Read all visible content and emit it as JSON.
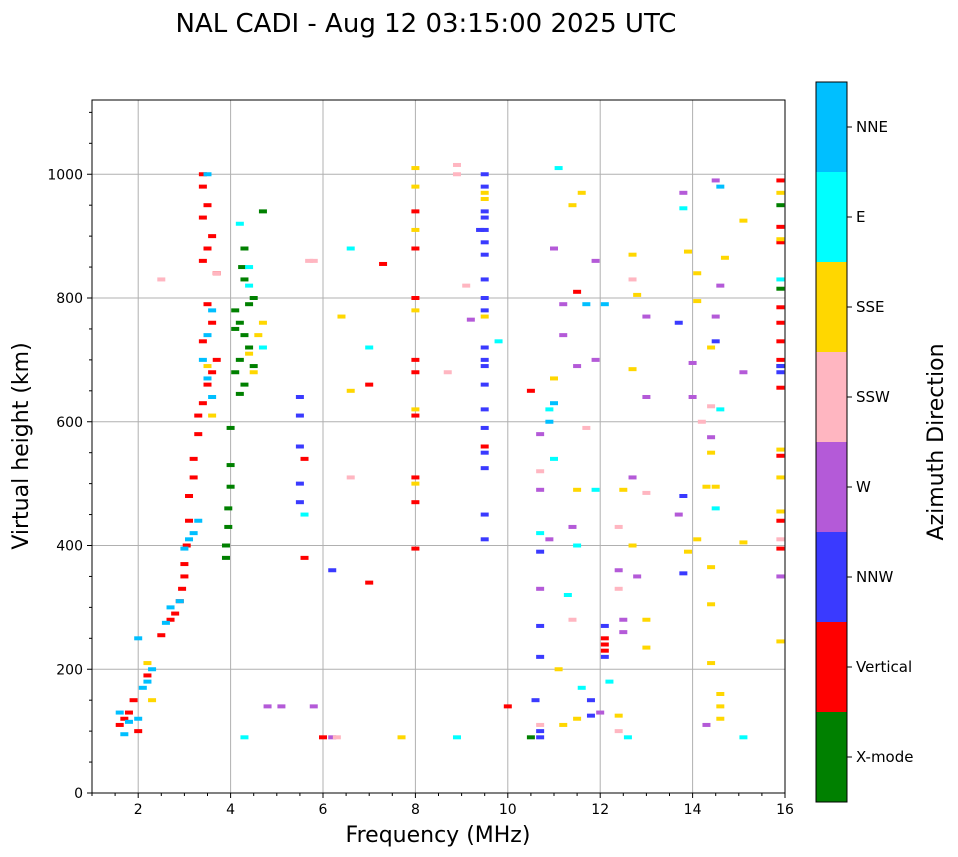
{
  "chart_data": {
    "type": "scatter",
    "title": "NAL CADI - Aug 12 03:15:00 2025 UTC",
    "xlabel": "Frequency (MHz)",
    "ylabel": "Virtual height (km)",
    "xlim": [
      1,
      16
    ],
    "ylim": [
      0,
      1120
    ],
    "xticks": [
      2,
      4,
      6,
      8,
      10,
      12,
      14,
      16
    ],
    "yticks": [
      0,
      200,
      400,
      600,
      800,
      1000
    ],
    "grid": true,
    "colorbar": {
      "label": "Azimuth Direction",
      "categories": [
        {
          "name": "X-mode",
          "color": "#008000"
        },
        {
          "name": "Vertical",
          "color": "#ff0000"
        },
        {
          "name": "NNW",
          "color": "#3a3aff"
        },
        {
          "name": "W",
          "color": "#b45ad8"
        },
        {
          "name": "SSW",
          "color": "#ffb6c1"
        },
        {
          "name": "SSE",
          "color": "#ffd700"
        },
        {
          "name": "E",
          "color": "#00ffff"
        },
        {
          "name": "NNE",
          "color": "#00bfff"
        }
      ]
    },
    "series": [
      {
        "name": "X-mode",
        "points": [
          [
            4.0,
            590
          ],
          [
            4.0,
            530
          ],
          [
            4.0,
            495
          ],
          [
            3.95,
            460
          ],
          [
            3.95,
            430
          ],
          [
            3.9,
            400
          ],
          [
            3.9,
            380
          ],
          [
            4.1,
            780
          ],
          [
            4.2,
            760
          ],
          [
            4.3,
            740
          ],
          [
            4.4,
            720
          ],
          [
            4.2,
            700
          ],
          [
            4.1,
            680
          ],
          [
            4.3,
            660
          ],
          [
            4.2,
            645
          ],
          [
            4.5,
            690
          ],
          [
            4.5,
            800
          ],
          [
            4.3,
            830
          ],
          [
            4.4,
            790
          ],
          [
            4.1,
            750
          ],
          [
            4.3,
            880
          ],
          [
            4.25,
            850
          ],
          [
            15.9,
            950
          ],
          [
            15.9,
            815
          ],
          [
            15.9,
            690
          ],
          [
            10.5,
            90
          ],
          [
            4.7,
            940
          ]
        ]
      },
      {
        "name": "Vertical",
        "points": [
          [
            3.4,
            1000
          ],
          [
            3.4,
            980
          ],
          [
            3.5,
            950
          ],
          [
            3.4,
            930
          ],
          [
            3.6,
            900
          ],
          [
            3.5,
            880
          ],
          [
            3.4,
            860
          ],
          [
            3.7,
            840
          ],
          [
            3.5,
            790
          ],
          [
            3.6,
            760
          ],
          [
            3.4,
            730
          ],
          [
            3.7,
            700
          ],
          [
            3.6,
            680
          ],
          [
            3.5,
            660
          ],
          [
            3.4,
            630
          ],
          [
            3.3,
            610
          ],
          [
            3.3,
            580
          ],
          [
            3.2,
            540
          ],
          [
            3.2,
            510
          ],
          [
            3.1,
            480
          ],
          [
            3.1,
            440
          ],
          [
            3.05,
            400
          ],
          [
            3.0,
            370
          ],
          [
            3.0,
            350
          ],
          [
            2.95,
            330
          ],
          [
            2.9,
            310
          ],
          [
            2.8,
            290
          ],
          [
            2.7,
            280
          ],
          [
            2.5,
            255
          ],
          [
            2.2,
            190
          ],
          [
            1.9,
            150
          ],
          [
            1.8,
            130
          ],
          [
            1.6,
            110
          ],
          [
            1.7,
            120
          ],
          [
            2.0,
            100
          ],
          [
            6.0,
            90
          ],
          [
            7.0,
            660
          ],
          [
            7.3,
            855
          ],
          [
            7.0,
            340
          ],
          [
            8.0,
            940
          ],
          [
            8.0,
            880
          ],
          [
            8.0,
            800
          ],
          [
            8.0,
            700
          ],
          [
            8.0,
            680
          ],
          [
            8.0,
            610
          ],
          [
            8.0,
            510
          ],
          [
            8.0,
            470
          ],
          [
            8.0,
            395
          ],
          [
            9.5,
            560
          ],
          [
            10.5,
            650
          ],
          [
            11.5,
            810
          ],
          [
            12.1,
            250
          ],
          [
            12.1,
            230
          ],
          [
            12.1,
            240
          ],
          [
            15.9,
            990
          ],
          [
            15.9,
            915
          ],
          [
            15.9,
            890
          ],
          [
            15.9,
            785
          ],
          [
            15.9,
            760
          ],
          [
            15.9,
            730
          ],
          [
            15.9,
            700
          ],
          [
            15.9,
            655
          ],
          [
            15.9,
            545
          ],
          [
            15.9,
            440
          ],
          [
            15.9,
            395
          ],
          [
            10.0,
            140
          ],
          [
            5.6,
            540
          ],
          [
            5.6,
            380
          ]
        ]
      },
      {
        "name": "NNW",
        "points": [
          [
            9.5,
            1000
          ],
          [
            9.5,
            980
          ],
          [
            9.5,
            940
          ],
          [
            9.5,
            930
          ],
          [
            9.5,
            910
          ],
          [
            9.5,
            890
          ],
          [
            9.5,
            870
          ],
          [
            9.5,
            830
          ],
          [
            9.5,
            800
          ],
          [
            9.5,
            780
          ],
          [
            9.5,
            720
          ],
          [
            9.5,
            700
          ],
          [
            9.5,
            690
          ],
          [
            9.5,
            660
          ],
          [
            9.5,
            620
          ],
          [
            9.5,
            590
          ],
          [
            9.5,
            550
          ],
          [
            9.5,
            525
          ],
          [
            9.5,
            450
          ],
          [
            9.5,
            410
          ],
          [
            9.4,
            910
          ],
          [
            10.7,
            390
          ],
          [
            10.7,
            270
          ],
          [
            10.7,
            220
          ],
          [
            10.7,
            90
          ],
          [
            10.7,
            100
          ],
          [
            11.8,
            150
          ],
          [
            11.8,
            125
          ],
          [
            12.1,
            220
          ],
          [
            12.1,
            270
          ],
          [
            13.8,
            480
          ],
          [
            13.8,
            355
          ],
          [
            14.5,
            730
          ],
          [
            13.7,
            760
          ],
          [
            15.9,
            680
          ],
          [
            15.9,
            690
          ],
          [
            6.2,
            360
          ],
          [
            5.5,
            610
          ],
          [
            5.5,
            560
          ],
          [
            5.5,
            500
          ],
          [
            5.5,
            470
          ],
          [
            5.5,
            640
          ],
          [
            10.6,
            150
          ]
        ]
      },
      {
        "name": "W",
        "points": [
          [
            4.8,
            140
          ],
          [
            5.1,
            140
          ],
          [
            5.8,
            140
          ],
          [
            6.2,
            90
          ],
          [
            11.0,
            880
          ],
          [
            11.2,
            790
          ],
          [
            11.2,
            740
          ],
          [
            11.5,
            690
          ],
          [
            11.9,
            700
          ],
          [
            11.9,
            860
          ],
          [
            13.0,
            770
          ],
          [
            13.0,
            640
          ],
          [
            12.7,
            510
          ],
          [
            12.8,
            350
          ],
          [
            12.4,
            360
          ],
          [
            12.5,
            280
          ],
          [
            12.5,
            260
          ],
          [
            13.8,
            970
          ],
          [
            14.5,
            990
          ],
          [
            14.5,
            770
          ],
          [
            14.6,
            820
          ],
          [
            14.4,
            575
          ],
          [
            14.0,
            695
          ],
          [
            14.0,
            640
          ],
          [
            13.7,
            450
          ],
          [
            15.9,
            350
          ],
          [
            9.2,
            765
          ],
          [
            10.7,
            580
          ],
          [
            10.7,
            490
          ],
          [
            10.7,
            330
          ],
          [
            11.4,
            430
          ],
          [
            12.0,
            130
          ],
          [
            14.3,
            110
          ],
          [
            15.1,
            680
          ],
          [
            10.9,
            410
          ]
        ]
      },
      {
        "name": "SSW",
        "points": [
          [
            2.5,
            830
          ],
          [
            3.7,
            840
          ],
          [
            5.8,
            860
          ],
          [
            8.9,
            1015
          ],
          [
            8.9,
            1000
          ],
          [
            9.1,
            820
          ],
          [
            8.7,
            680
          ],
          [
            6.3,
            90
          ],
          [
            6.6,
            510
          ],
          [
            10.7,
            520
          ],
          [
            10.7,
            110
          ],
          [
            11.7,
            590
          ],
          [
            12.4,
            430
          ],
          [
            12.4,
            330
          ],
          [
            12.4,
            100
          ],
          [
            12.7,
            830
          ],
          [
            13.0,
            485
          ],
          [
            14.4,
            625
          ],
          [
            14.2,
            600
          ],
          [
            15.9,
            410
          ],
          [
            5.7,
            860
          ],
          [
            11.4,
            280
          ]
        ]
      },
      {
        "name": "SSE",
        "points": [
          [
            2.2,
            210
          ],
          [
            2.3,
            150
          ],
          [
            3.5,
            690
          ],
          [
            3.6,
            610
          ],
          [
            4.5,
            680
          ],
          [
            4.4,
            710
          ],
          [
            4.6,
            740
          ],
          [
            4.7,
            760
          ],
          [
            6.4,
            770
          ],
          [
            6.6,
            650
          ],
          [
            7.7,
            90
          ],
          [
            8.0,
            1010
          ],
          [
            8.0,
            980
          ],
          [
            8.0,
            910
          ],
          [
            8.0,
            780
          ],
          [
            8.0,
            620
          ],
          [
            8.0,
            500
          ],
          [
            9.5,
            970
          ],
          [
            9.5,
            960
          ],
          [
            9.5,
            770
          ],
          [
            11.0,
            670
          ],
          [
            11.1,
            200
          ],
          [
            11.4,
            950
          ],
          [
            11.6,
            970
          ],
          [
            11.5,
            490
          ],
          [
            11.2,
            110
          ],
          [
            11.5,
            120
          ],
          [
            12.7,
            870
          ],
          [
            12.7,
            685
          ],
          [
            12.5,
            490
          ],
          [
            12.7,
            400
          ],
          [
            13.0,
            280
          ],
          [
            13.0,
            235
          ],
          [
            12.4,
            125
          ],
          [
            12.8,
            805
          ],
          [
            13.9,
            875
          ],
          [
            14.1,
            840
          ],
          [
            14.1,
            795
          ],
          [
            14.4,
            720
          ],
          [
            14.4,
            550
          ],
          [
            14.3,
            495
          ],
          [
            14.4,
            365
          ],
          [
            14.4,
            305
          ],
          [
            14.4,
            210
          ],
          [
            14.6,
            160
          ],
          [
            14.6,
            140
          ],
          [
            14.6,
            120
          ],
          [
            14.1,
            410
          ],
          [
            15.1,
            925
          ],
          [
            15.1,
            405
          ],
          [
            13.9,
            390
          ],
          [
            15.9,
            970
          ],
          [
            15.9,
            895
          ],
          [
            15.9,
            555
          ],
          [
            15.9,
            510
          ],
          [
            15.9,
            455
          ],
          [
            15.9,
            245
          ],
          [
            14.7,
            865
          ],
          [
            14.5,
            495
          ]
        ]
      },
      {
        "name": "E",
        "points": [
          [
            4.2,
            920
          ],
          [
            4.4,
            850
          ],
          [
            4.4,
            820
          ],
          [
            4.7,
            720
          ],
          [
            4.3,
            90
          ],
          [
            6.6,
            880
          ],
          [
            7.0,
            720
          ],
          [
            8.9,
            90
          ],
          [
            9.8,
            730
          ],
          [
            10.9,
            620
          ],
          [
            11.0,
            540
          ],
          [
            11.1,
            1010
          ],
          [
            11.5,
            400
          ],
          [
            11.6,
            170
          ],
          [
            11.9,
            490
          ],
          [
            12.2,
            180
          ],
          [
            12.6,
            90
          ],
          [
            13.8,
            945
          ],
          [
            14.5,
            460
          ],
          [
            14.6,
            620
          ],
          [
            15.1,
            90
          ],
          [
            15.9,
            830
          ],
          [
            10.7,
            420
          ],
          [
            11.3,
            320
          ],
          [
            5.6,
            450
          ]
        ]
      },
      {
        "name": "NNE",
        "points": [
          [
            3.5,
            1000
          ],
          [
            3.6,
            780
          ],
          [
            3.5,
            740
          ],
          [
            3.4,
            700
          ],
          [
            3.5,
            670
          ],
          [
            3.6,
            640
          ],
          [
            3.3,
            440
          ],
          [
            3.2,
            420
          ],
          [
            3.1,
            410
          ],
          [
            3.0,
            395
          ],
          [
            2.9,
            310
          ],
          [
            2.7,
            300
          ],
          [
            2.6,
            275
          ],
          [
            2.3,
            200
          ],
          [
            2.2,
            180
          ],
          [
            2.1,
            170
          ],
          [
            2.0,
            120
          ],
          [
            1.6,
            130
          ],
          [
            1.7,
            95
          ],
          [
            1.8,
            115
          ],
          [
            2.0,
            250
          ],
          [
            11.0,
            630
          ],
          [
            10.9,
            600
          ],
          [
            11.7,
            790
          ],
          [
            14.6,
            980
          ],
          [
            12.1,
            790
          ]
        ]
      }
    ]
  }
}
